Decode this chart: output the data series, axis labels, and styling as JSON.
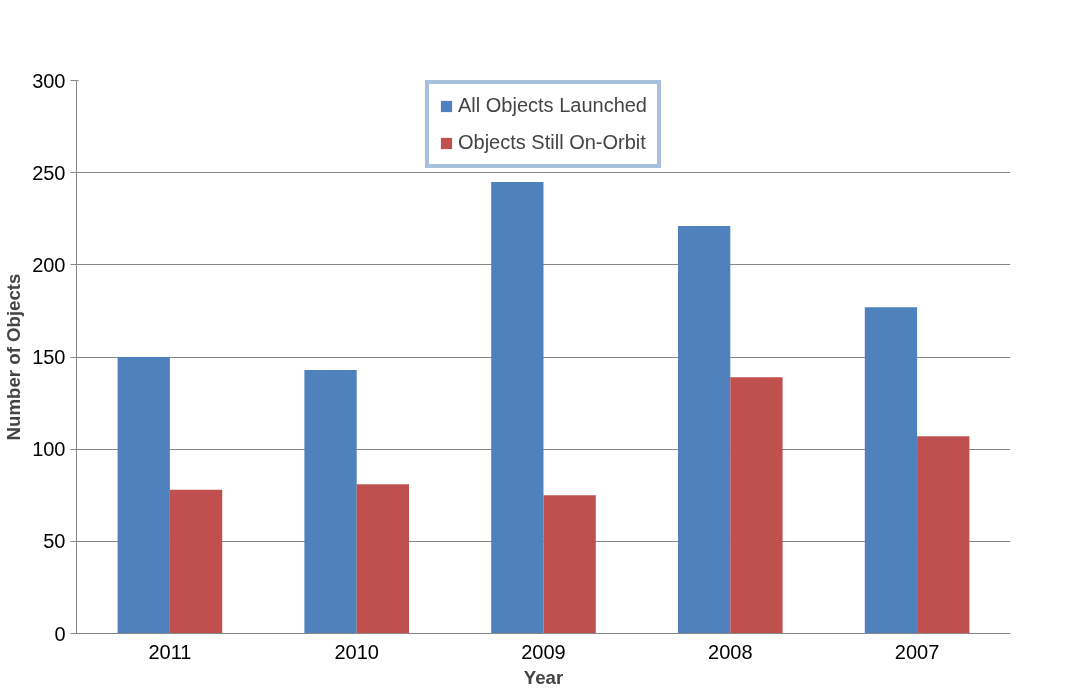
{
  "chart_data": {
    "type": "bar",
    "xlabel": "Year",
    "ylabel": "Number of Objects",
    "categories": [
      "2011",
      "2010",
      "2009",
      "2008",
      "2007"
    ],
    "series": [
      {
        "name": "All Objects Launched",
        "color": "#4f81bd",
        "values": [
          150,
          143,
          245,
          221,
          177
        ]
      },
      {
        "name": "Objects Still On-Orbit",
        "color": "#c0504d",
        "values": [
          78,
          81,
          75,
          139,
          107
        ]
      }
    ],
    "ylim": [
      0,
      300
    ],
    "yticks": [
      0,
      50,
      100,
      150,
      200,
      250,
      300
    ],
    "grid": "y",
    "legend": "top"
  }
}
